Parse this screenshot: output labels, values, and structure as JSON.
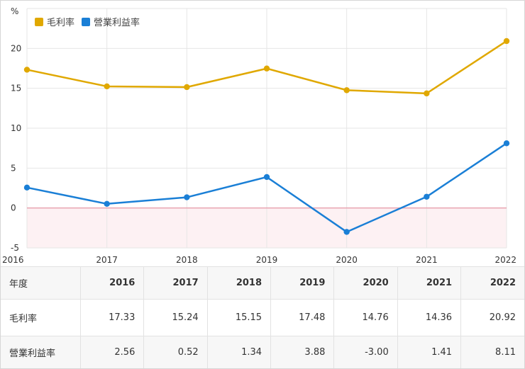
{
  "chart_data": {
    "type": "line",
    "y_unit": "%",
    "categories": [
      "2016",
      "2017",
      "2018",
      "2019",
      "2020",
      "2021",
      "2022"
    ],
    "ylim": [
      -5,
      25
    ],
    "yticks": [
      "-5",
      "0",
      "5",
      "10",
      "15",
      "20"
    ],
    "legend_position": "top-left",
    "series": [
      {
        "name": "毛利率",
        "color": "#e0a800",
        "values": [
          17.33,
          15.24,
          15.15,
          17.48,
          14.76,
          14.36,
          20.92
        ]
      },
      {
        "name": "營業利益率",
        "color": "#1a7fd6",
        "values": [
          2.56,
          0.52,
          1.34,
          3.88,
          -3.0,
          1.41,
          8.11
        ]
      }
    ],
    "zero_line_color": "#e8a3b0",
    "negative_fill_color": "#fdf1f3"
  },
  "table": {
    "header_label": "年度",
    "years": [
      "2016",
      "2017",
      "2018",
      "2019",
      "2020",
      "2021",
      "2022"
    ],
    "rows": [
      {
        "label": "毛利率",
        "values": [
          "17.33",
          "15.24",
          "15.15",
          "17.48",
          "14.76",
          "14.36",
          "20.92"
        ]
      },
      {
        "label": "營業利益率",
        "values": [
          "2.56",
          "0.52",
          "1.34",
          "3.88",
          "-3.00",
          "1.41",
          "8.11"
        ]
      }
    ]
  }
}
